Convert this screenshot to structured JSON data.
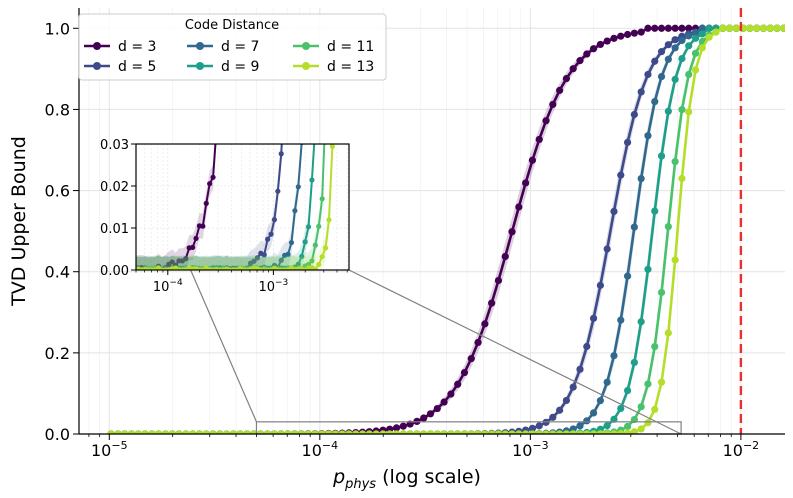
{
  "chart_data": {
    "type": "line",
    "title": "",
    "xlabel_main": "p",
    "xlabel_sub": "phys",
    "xlabel_suffix": " (log scale)",
    "ylabel": "TVD Upper Bound",
    "xscale": "log",
    "xlim": [
      7.18e-06,
      0.0162
    ],
    "ylim": [
      0,
      1.05
    ],
    "xticks": [
      {
        "value": 1e-05,
        "base": "10",
        "exp": "−5"
      },
      {
        "value": 0.0001,
        "base": "10",
        "exp": "−4"
      },
      {
        "value": 0.001,
        "base": "10",
        "exp": "−3"
      },
      {
        "value": 0.01,
        "base": "10",
        "exp": "−2"
      }
    ],
    "yticks": [
      "0.0",
      "0.2",
      "0.4",
      "0.6",
      "0.8",
      "1.0"
    ],
    "grid": true,
    "threshold_line": {
      "x": 0.01,
      "color": "#e8312a",
      "style": "dashed"
    },
    "legend": {
      "title": "Code Distance",
      "position": "top-left",
      "entries": [
        "d = 3",
        "d = 5",
        "d = 7",
        "d = 9",
        "d = 11",
        "d = 13"
      ]
    },
    "series": [
      {
        "name": "d = 3",
        "distance": 3,
        "color": "#440154",
        "p50": 0.00082,
        "slope": 3.3
      },
      {
        "name": "d = 5",
        "distance": 5,
        "color": "#3e4a89",
        "p50": 0.0024,
        "slope": 5.0
      },
      {
        "name": "d = 7",
        "distance": 7,
        "color": "#31688e",
        "p50": 0.0031,
        "slope": 6.6
      },
      {
        "name": "d = 9",
        "distance": 9,
        "color": "#1f9e89",
        "p50": 0.0038,
        "slope": 7.8
      },
      {
        "name": "d = 11",
        "distance": 11,
        "color": "#4ac16d",
        "p50": 0.0045,
        "slope": 9.0
      },
      {
        "name": "d = 13",
        "distance": 13,
        "color": "#b5de2b",
        "p50": 0.005,
        "slope": 11.0
      }
    ],
    "x_points": {
      "start": 1.02e-05,
      "end": 0.016,
      "count": 100
    },
    "inset": {
      "xlim": [
        5e-05,
        0.0052
      ],
      "ylim": [
        0,
        0.03
      ],
      "yticks": [
        "0.00",
        "0.01",
        "0.02",
        "0.03"
      ],
      "xticks": [
        {
          "value": 0.0001,
          "base": "10",
          "exp": "−4"
        },
        {
          "value": 0.001,
          "base": "10",
          "exp": "−3"
        }
      ]
    }
  }
}
